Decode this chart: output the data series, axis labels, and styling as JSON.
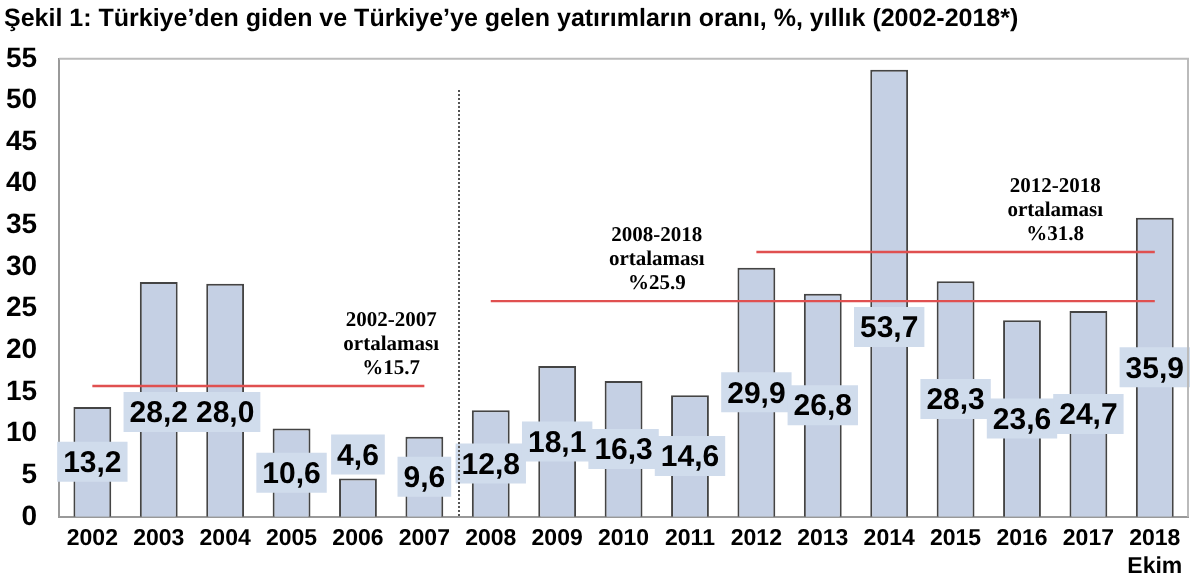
{
  "chart_data": {
    "type": "bar",
    "title": "Şekil 1: Türkiye’den giden ve Türkiye’ye gelen yatırımların oranı, %, yıllık (2002-2018*)",
    "categories": [
      "2002",
      "2003",
      "2004",
      "2005",
      "2006",
      "2007",
      "2008",
      "2009",
      "2010",
      "2011",
      "2012",
      "2013",
      "2014",
      "2015",
      "2016",
      "2017",
      "2018\nEkim"
    ],
    "series": [
      {
        "color": "#c5d0e4",
        "values": [
          13.2,
          28.2,
          28.0,
          10.6,
          4.6,
          9.6,
          12.8,
          18.1,
          16.3,
          14.6,
          29.9,
          26.8,
          53.7,
          28.3,
          23.6,
          24.7,
          35.9
        ],
        "value_labels": [
          "13,2",
          "28,2",
          "28,0",
          "10,6",
          "4,6",
          "9,6",
          "12,8",
          "18,1",
          "16,3",
          "14,6",
          "29,9",
          "26,8",
          "53,7",
          "28,3",
          "23,6",
          "24,7",
          "35,9"
        ]
      },
      {
        "type": "line",
        "color": "#e05050",
        "values": [
          15.7,
          15.7,
          15.7,
          15.7,
          15.7,
          15.7,
          null,
          null,
          null,
          null,
          null,
          null,
          null,
          null,
          null,
          null,
          null
        ]
      },
      {
        "type": "line",
        "color": "#e05050",
        "values": [
          null,
          null,
          null,
          null,
          null,
          null,
          25.9,
          25.9,
          25.9,
          25.9,
          25.9,
          25.9,
          25.9,
          25.9,
          25.9,
          25.9,
          25.9
        ]
      },
      {
        "type": "line",
        "color": "#e05050",
        "values": [
          null,
          null,
          null,
          null,
          null,
          null,
          null,
          null,
          null,
          null,
          31.8,
          31.8,
          31.8,
          31.8,
          31.8,
          31.8,
          31.8
        ]
      }
    ],
    "annotations": [
      "2002-2007\nortalaması\n%15.7",
      "2008-2018\nortalaması\n%25.9",
      "2012-2018\nortalaması\n%31.8"
    ],
    "ylim": [
      0,
      55
    ],
    "yticks": [
      0,
      5,
      10,
      15,
      20,
      25,
      30,
      35,
      40,
      45,
      50,
      55
    ],
    "grid": false,
    "legend": false,
    "marker": "none"
  }
}
